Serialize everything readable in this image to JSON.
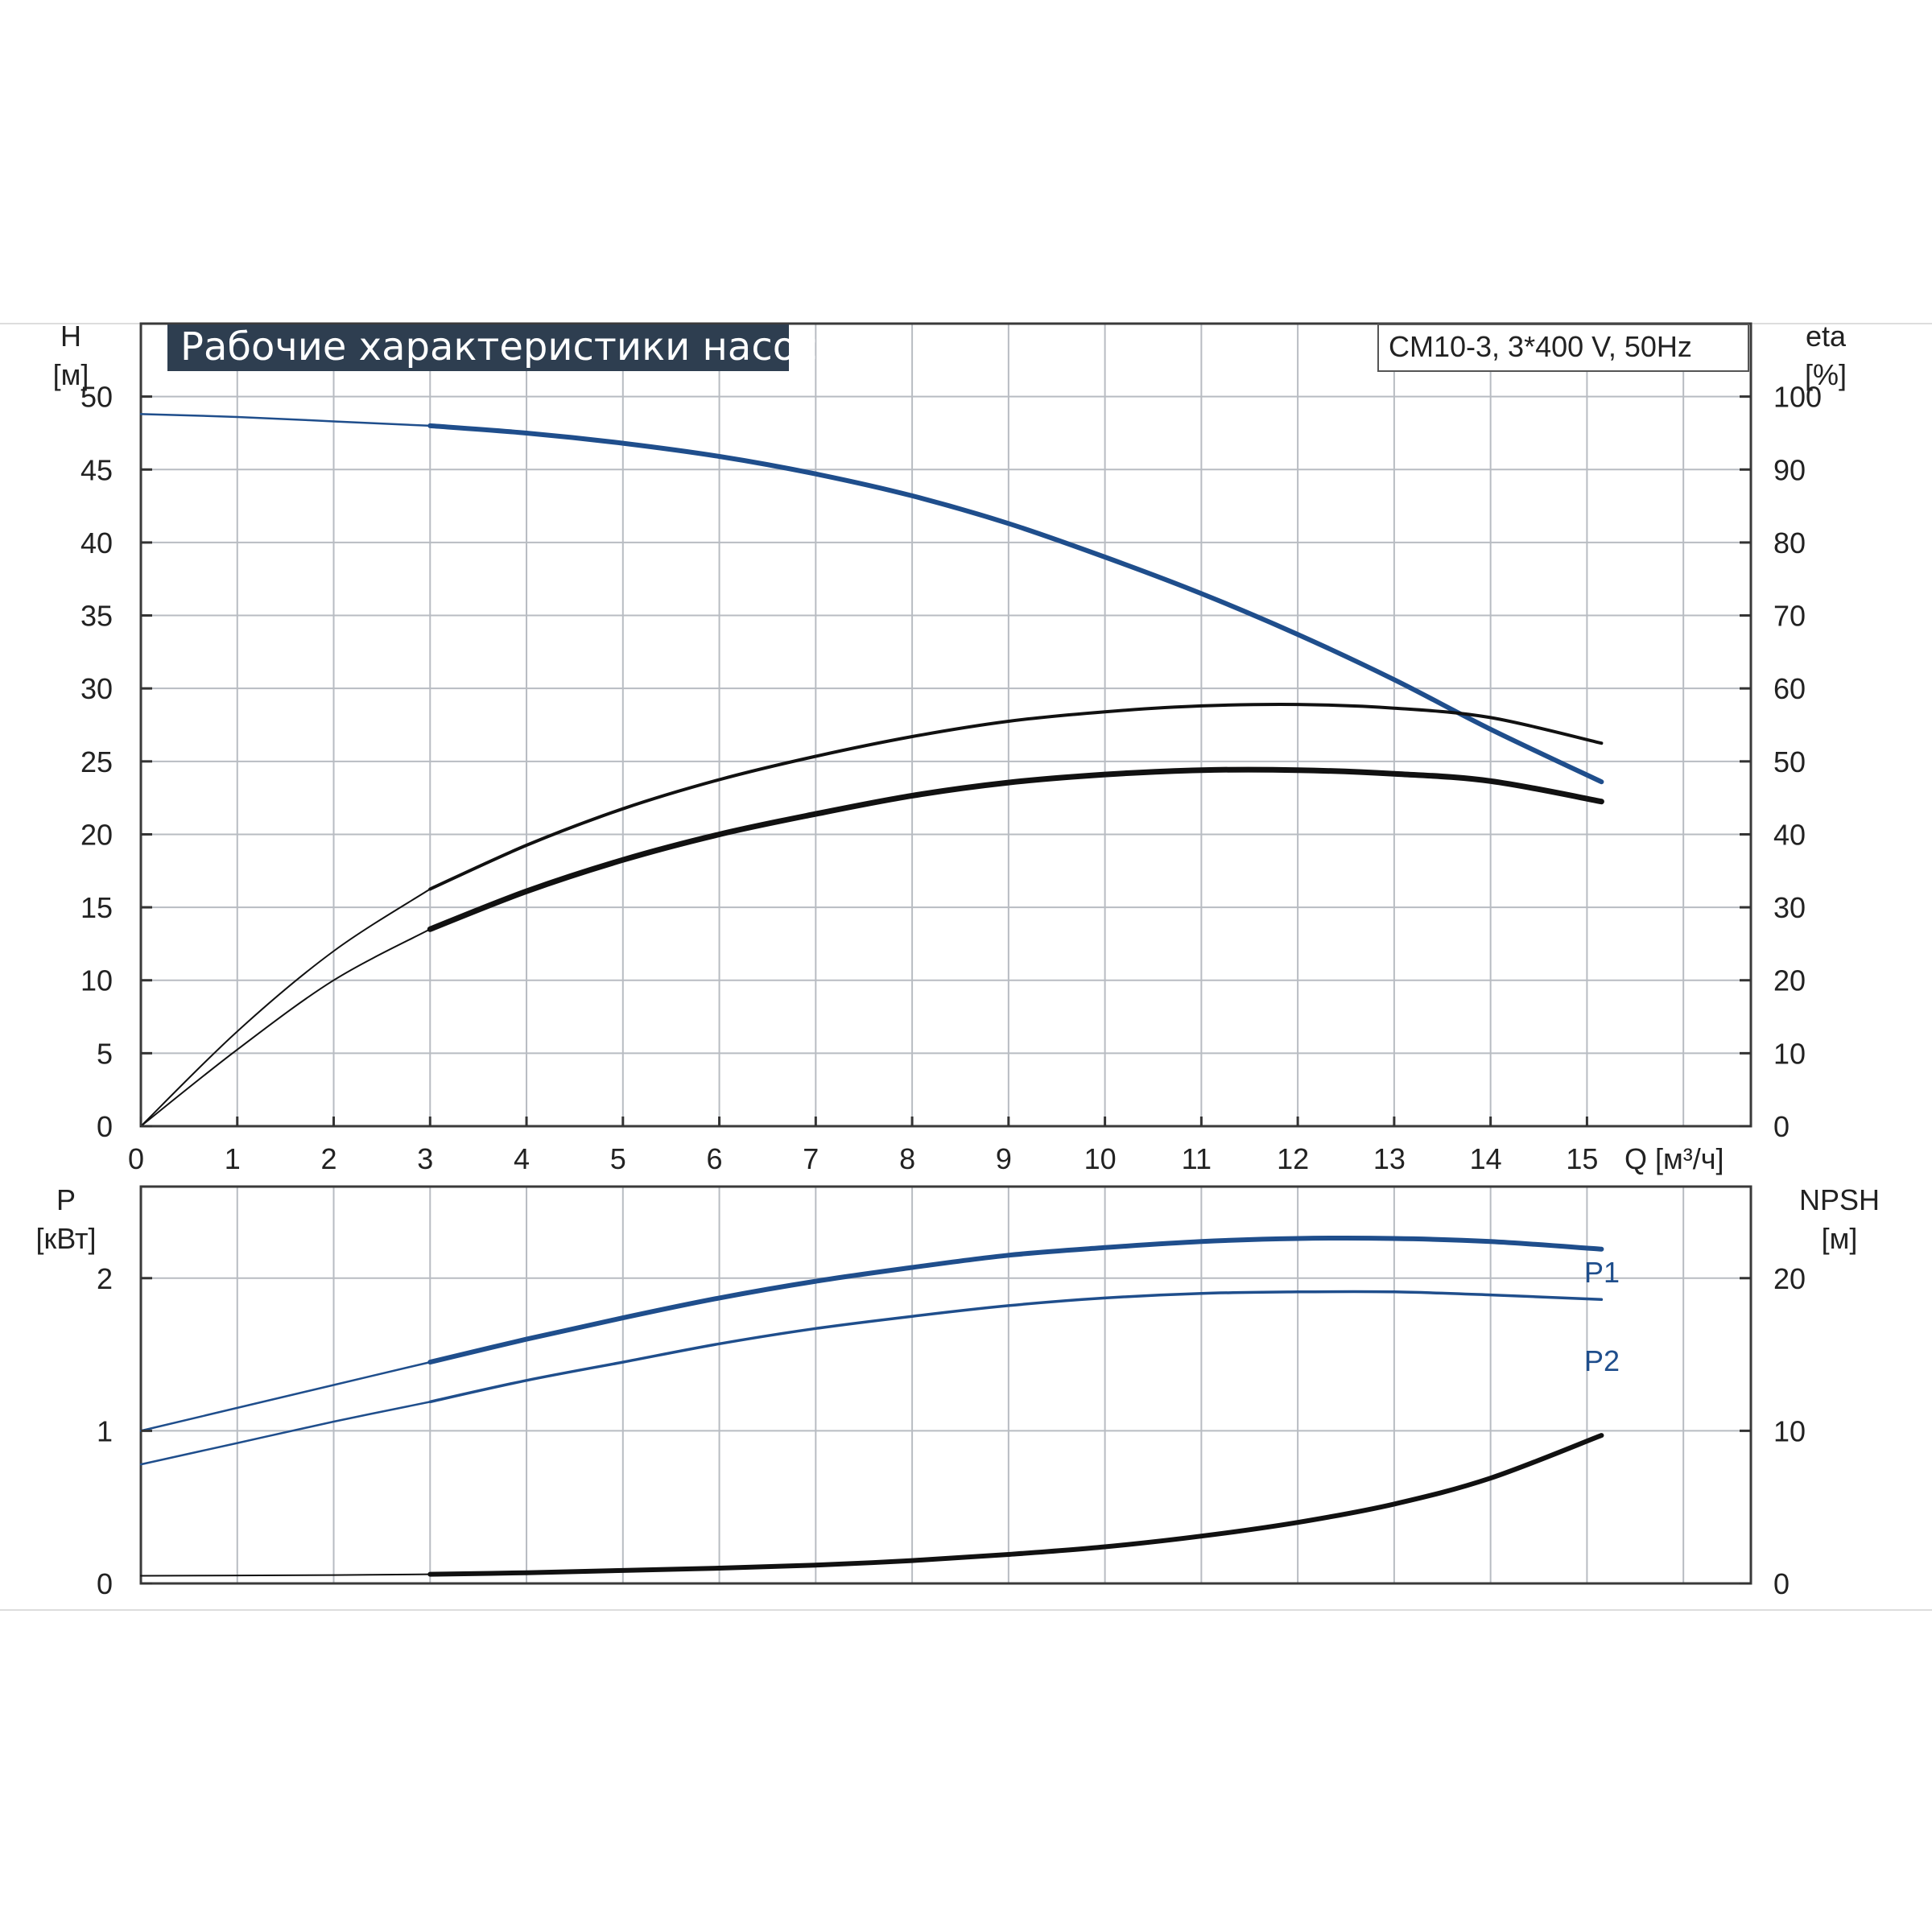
{
  "chart_data": [
    {
      "type": "line",
      "title": "Рабочие характеристики насоса",
      "model": "CM10-3, 3*400 V, 50Hz",
      "ylabel_left": "H",
      "ylabel_left_unit": "[м]",
      "ylabel_right": "eta",
      "ylabel_right_unit": "[%]",
      "xlabel": "Q [м³/ч]",
      "xlim": [
        0,
        16.7
      ],
      "ylim_left": [
        0,
        55
      ],
      "ylim_right": [
        0,
        110
      ],
      "x_ticks": [
        0,
        1,
        2,
        3,
        4,
        5,
        6,
        7,
        8,
        9,
        10,
        11,
        12,
        13,
        14,
        15
      ],
      "y_ticks_left": [
        0,
        5,
        10,
        15,
        20,
        25,
        30,
        35,
        40,
        45,
        50
      ],
      "y_ticks_right": [
        0,
        10,
        20,
        30,
        40,
        50,
        60,
        70,
        80,
        90,
        100
      ],
      "grid": true,
      "series": [
        {
          "axis": "left",
          "color": "#1f4e8c",
          "x": [
            0,
            1,
            2,
            3,
            4,
            5,
            6,
            7,
            8,
            9,
            10,
            11,
            12,
            13,
            14,
            15.15
          ],
          "y": [
            48.8,
            48.6,
            48.3,
            48.0,
            47.5,
            46.8,
            45.9,
            44.7,
            43.2,
            41.3,
            39.0,
            36.5,
            33.7,
            30.6,
            27.2,
            23.6
          ]
        },
        {
          "axis": "right",
          "color": "#111111",
          "x": [
            0,
            1,
            2,
            3,
            4,
            5,
            6,
            7,
            8,
            9,
            10,
            11,
            12,
            13,
            14,
            15.15
          ],
          "y": [
            0,
            13,
            24,
            32.5,
            38.5,
            43.5,
            47.5,
            50.7,
            53.4,
            55.5,
            56.8,
            57.6,
            57.8,
            57.3,
            56.0,
            52.5
          ]
        },
        {
          "axis": "right",
          "color": "#111111",
          "x": [
            0,
            1,
            2,
            3,
            4,
            5,
            6,
            7,
            8,
            9,
            10,
            11,
            12,
            13,
            14,
            15.15
          ],
          "y": [
            0,
            10.5,
            20,
            27,
            32.2,
            36.5,
            40,
            42.8,
            45.3,
            47.1,
            48.2,
            48.8,
            48.8,
            48.3,
            47.3,
            44.5
          ]
        }
      ]
    },
    {
      "type": "line",
      "ylabel_left": "P",
      "ylabel_left_unit": "[кВт]",
      "ylabel_right": "NPSH",
      "ylabel_right_unit": "[м]",
      "xlim": [
        0,
        16.7
      ],
      "ylim_left": [
        0,
        2.6
      ],
      "ylim_right": [
        0,
        26
      ],
      "y_ticks_left": [
        0,
        1,
        2
      ],
      "y_ticks_right": [
        0,
        10,
        20
      ],
      "grid": true,
      "series": [
        {
          "name": "P1",
          "axis": "left",
          "color": "#1f4e8c",
          "x": [
            0,
            1,
            2,
            3,
            4,
            5,
            6,
            7,
            8,
            9,
            10,
            11,
            12,
            13,
            14,
            15.15
          ],
          "y": [
            1.0,
            1.15,
            1.3,
            1.45,
            1.6,
            1.74,
            1.87,
            1.98,
            2.07,
            2.15,
            2.2,
            2.24,
            2.26,
            2.26,
            2.24,
            2.19
          ]
        },
        {
          "name": "P2",
          "axis": "left",
          "color": "#1f4e8c",
          "x": [
            0,
            1,
            2,
            3,
            4,
            5,
            6,
            7,
            8,
            9,
            10,
            11,
            12,
            13,
            14,
            15.15
          ],
          "y": [
            0.78,
            0.92,
            1.06,
            1.19,
            1.33,
            1.45,
            1.57,
            1.67,
            1.75,
            1.82,
            1.87,
            1.9,
            1.91,
            1.91,
            1.89,
            1.86
          ]
        },
        {
          "axis": "right",
          "color": "#111111",
          "x": [
            0,
            1,
            2,
            3,
            4,
            5,
            6,
            7,
            8,
            9,
            10,
            11,
            12,
            13,
            14,
            15.15
          ],
          "y": [
            0.5,
            0.52,
            0.55,
            0.6,
            0.7,
            0.85,
            1.0,
            1.2,
            1.5,
            1.9,
            2.4,
            3.1,
            4.0,
            5.2,
            6.9,
            9.7
          ]
        }
      ]
    }
  ]
}
